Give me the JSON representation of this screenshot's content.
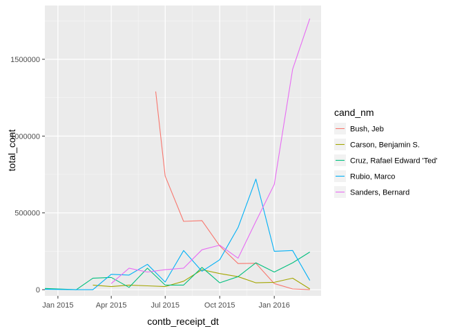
{
  "chart_data": {
    "type": "line",
    "xlabel": "contb_receipt_dt",
    "ylabel": "total_cont",
    "legend_title": "cand_nm",
    "legend_position": "right",
    "grid": true,
    "xlim": [
      "2014-12-10",
      "2016-03-20"
    ],
    "ylim": [
      -40000,
      1850000
    ],
    "x_ticks": [
      {
        "date": "2015-01-01",
        "label": "Jan 2015"
      },
      {
        "date": "2015-04-01",
        "label": "Apr 2015"
      },
      {
        "date": "2015-07-01",
        "label": "Jul 2015"
      },
      {
        "date": "2015-10-01",
        "label": "Oct 2015"
      },
      {
        "date": "2016-01-01",
        "label": "Jan 2016"
      }
    ],
    "y_ticks": [
      {
        "value": 0,
        "label": "0"
      },
      {
        "value": 500000,
        "label": "500000"
      },
      {
        "value": 1000000,
        "label": "1000000"
      },
      {
        "value": 1500000,
        "label": "1500000"
      }
    ],
    "series": [
      {
        "name": "Bush, Jeb",
        "color": "#F8766D",
        "points": [
          {
            "x": "2015-06-15",
            "y": 1290000
          },
          {
            "x": "2015-07-01",
            "y": 740000
          },
          {
            "x": "2015-08-01",
            "y": 445000
          },
          {
            "x": "2015-09-01",
            "y": 450000
          },
          {
            "x": "2015-10-01",
            "y": 285000
          },
          {
            "x": "2015-11-01",
            "y": 170000
          },
          {
            "x": "2015-12-01",
            "y": 172000
          },
          {
            "x": "2016-01-01",
            "y": 40000
          },
          {
            "x": "2016-02-01",
            "y": 5000
          },
          {
            "x": "2016-03-01",
            "y": 0
          }
        ]
      },
      {
        "name": "Carson, Benjamin S.",
        "color": "#A3A500",
        "points": [
          {
            "x": "2015-03-01",
            "y": 30000
          },
          {
            "x": "2015-04-01",
            "y": 20000
          },
          {
            "x": "2015-05-01",
            "y": 30000
          },
          {
            "x": "2015-06-01",
            "y": 25000
          },
          {
            "x": "2015-07-01",
            "y": 20000
          },
          {
            "x": "2015-08-01",
            "y": 55000
          },
          {
            "x": "2015-09-01",
            "y": 130000
          },
          {
            "x": "2015-10-01",
            "y": 105000
          },
          {
            "x": "2015-11-01",
            "y": 85000
          },
          {
            "x": "2015-12-01",
            "y": 45000
          },
          {
            "x": "2016-01-01",
            "y": 48000
          },
          {
            "x": "2016-02-01",
            "y": 75000
          },
          {
            "x": "2016-03-01",
            "y": 5000
          }
        ]
      },
      {
        "name": "Cruz, Rafael Edward 'Ted'",
        "color": "#00BF7D",
        "points": [
          {
            "x": "2014-12-10",
            "y": 8000
          },
          {
            "x": "2015-02-01",
            "y": 0
          },
          {
            "x": "2015-03-01",
            "y": 75000
          },
          {
            "x": "2015-04-01",
            "y": 80000
          },
          {
            "x": "2015-05-01",
            "y": 15000
          },
          {
            "x": "2015-06-01",
            "y": 140000
          },
          {
            "x": "2015-07-01",
            "y": 30000
          },
          {
            "x": "2015-08-01",
            "y": 30000
          },
          {
            "x": "2015-09-01",
            "y": 145000
          },
          {
            "x": "2015-10-01",
            "y": 45000
          },
          {
            "x": "2015-11-01",
            "y": 85000
          },
          {
            "x": "2015-12-01",
            "y": 175000
          },
          {
            "x": "2016-01-01",
            "y": 115000
          },
          {
            "x": "2016-02-01",
            "y": 175000
          },
          {
            "x": "2016-03-01",
            "y": 245000
          }
        ]
      },
      {
        "name": "Rubio, Marco",
        "color": "#00B0F6",
        "points": [
          {
            "x": "2014-12-10",
            "y": 2000
          },
          {
            "x": "2015-02-01",
            "y": 0
          },
          {
            "x": "2015-03-01",
            "y": 0
          },
          {
            "x": "2015-04-01",
            "y": 100000
          },
          {
            "x": "2015-05-01",
            "y": 95000
          },
          {
            "x": "2015-06-01",
            "y": 165000
          },
          {
            "x": "2015-07-01",
            "y": 50000
          },
          {
            "x": "2015-08-01",
            "y": 255000
          },
          {
            "x": "2015-09-01",
            "y": 120000
          },
          {
            "x": "2015-10-01",
            "y": 195000
          },
          {
            "x": "2015-11-01",
            "y": 405000
          },
          {
            "x": "2015-12-01",
            "y": 720000
          },
          {
            "x": "2016-01-01",
            "y": 250000
          },
          {
            "x": "2016-02-01",
            "y": 255000
          },
          {
            "x": "2016-03-01",
            "y": 60000
          }
        ]
      },
      {
        "name": "Sanders, Bernard",
        "color": "#E76BF3",
        "points": [
          {
            "x": "2015-04-01",
            "y": 40000
          },
          {
            "x": "2015-05-01",
            "y": 140000
          },
          {
            "x": "2015-06-01",
            "y": 115000
          },
          {
            "x": "2015-07-01",
            "y": 130000
          },
          {
            "x": "2015-08-01",
            "y": 140000
          },
          {
            "x": "2015-09-01",
            "y": 260000
          },
          {
            "x": "2015-10-01",
            "y": 290000
          },
          {
            "x": "2015-11-01",
            "y": 205000
          },
          {
            "x": "2015-12-01",
            "y": 445000
          },
          {
            "x": "2016-01-01",
            "y": 685000
          },
          {
            "x": "2016-02-01",
            "y": 1435000
          },
          {
            "x": "2016-03-01",
            "y": 1765000
          }
        ]
      }
    ]
  }
}
